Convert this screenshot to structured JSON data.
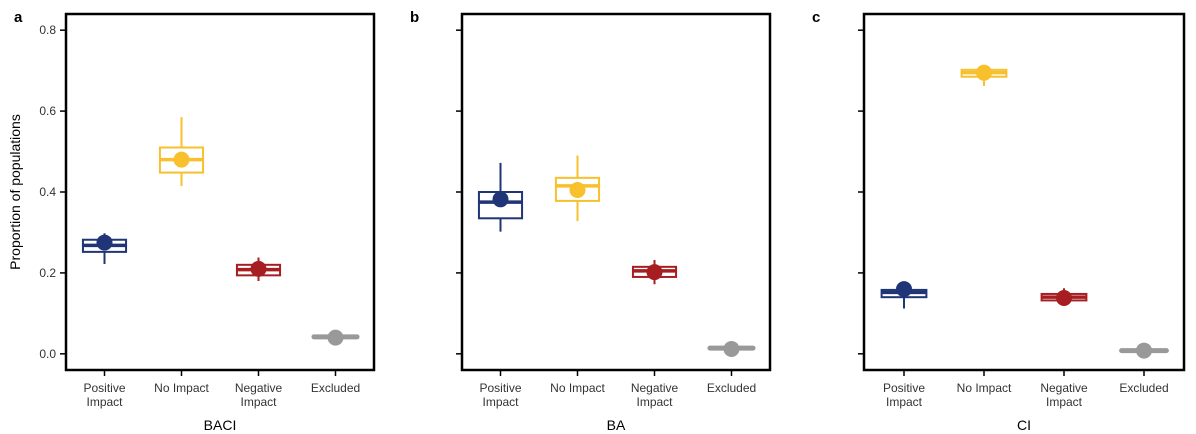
{
  "chart_data": [
    {
      "type": "box",
      "panel_label": "a",
      "xlabel": "BACI",
      "ylabel": "Proportion of populations",
      "ylim": [
        -0.04,
        0.84
      ],
      "yticks": [
        "0.0",
        "0.2",
        "0.4",
        "0.6",
        "0.8"
      ],
      "categories": [
        "Positive\nImpact",
        "No Impact",
        "Negative\nImpact",
        "Excluded"
      ],
      "boxes": [
        {
          "q1": 0.252,
          "median": 0.268,
          "q3": 0.282,
          "whisker_low": 0.222,
          "whisker_high": 0.298,
          "mean": 0.275,
          "color": "#1f3577"
        },
        {
          "q1": 0.448,
          "median": 0.48,
          "q3": 0.51,
          "whisker_low": 0.415,
          "whisker_high": 0.585,
          "mean": 0.48,
          "color": "#f7c02c"
        },
        {
          "q1": 0.194,
          "median": 0.208,
          "q3": 0.22,
          "whisker_low": 0.18,
          "whisker_high": 0.238,
          "mean": 0.21,
          "color": "#a71e22"
        },
        {
          "q1": 0.04,
          "median": 0.042,
          "q3": 0.044,
          "whisker_low": 0.04,
          "whisker_high": 0.044,
          "mean": 0.04,
          "color": "#999999"
        }
      ]
    },
    {
      "type": "box",
      "panel_label": "b",
      "xlabel": "BA",
      "ylabel": "",
      "ylim": [
        -0.04,
        0.84
      ],
      "yticks": [],
      "categories": [
        "Positive\nImpact",
        "No Impact",
        "Negative\nImpact",
        "Excluded"
      ],
      "boxes": [
        {
          "q1": 0.335,
          "median": 0.375,
          "q3": 0.4,
          "whisker_low": 0.302,
          "whisker_high": 0.472,
          "mean": 0.382,
          "color": "#1f3577"
        },
        {
          "q1": 0.378,
          "median": 0.415,
          "q3": 0.435,
          "whisker_low": 0.328,
          "whisker_high": 0.49,
          "mean": 0.405,
          "color": "#f7c02c"
        },
        {
          "q1": 0.19,
          "median": 0.205,
          "q3": 0.215,
          "whisker_low": 0.172,
          "whisker_high": 0.232,
          "mean": 0.202,
          "color": "#a71e22"
        },
        {
          "q1": 0.012,
          "median": 0.014,
          "q3": 0.016,
          "whisker_low": 0.012,
          "whisker_high": 0.016,
          "mean": 0.012,
          "color": "#999999"
        }
      ]
    },
    {
      "type": "box",
      "panel_label": "c",
      "xlabel": "CI",
      "ylabel": "",
      "ylim": [
        -0.04,
        0.84
      ],
      "yticks": [],
      "categories": [
        "Positive\nImpact",
        "No Impact",
        "Negative\nImpact",
        "Excluded"
      ],
      "boxes": [
        {
          "q1": 0.14,
          "median": 0.152,
          "q3": 0.158,
          "whisker_low": 0.112,
          "whisker_high": 0.17,
          "mean": 0.16,
          "color": "#1f3577"
        },
        {
          "q1": 0.685,
          "median": 0.695,
          "q3": 0.702,
          "whisker_low": 0.662,
          "whisker_high": 0.712,
          "mean": 0.695,
          "color": "#f7c02c"
        },
        {
          "q1": 0.132,
          "median": 0.14,
          "q3": 0.148,
          "whisker_low": 0.122,
          "whisker_high": 0.162,
          "mean": 0.138,
          "color": "#a71e22"
        },
        {
          "q1": 0.006,
          "median": 0.008,
          "q3": 0.01,
          "whisker_low": 0.006,
          "whisker_high": 0.01,
          "mean": 0.008,
          "color": "#999999"
        }
      ]
    }
  ]
}
